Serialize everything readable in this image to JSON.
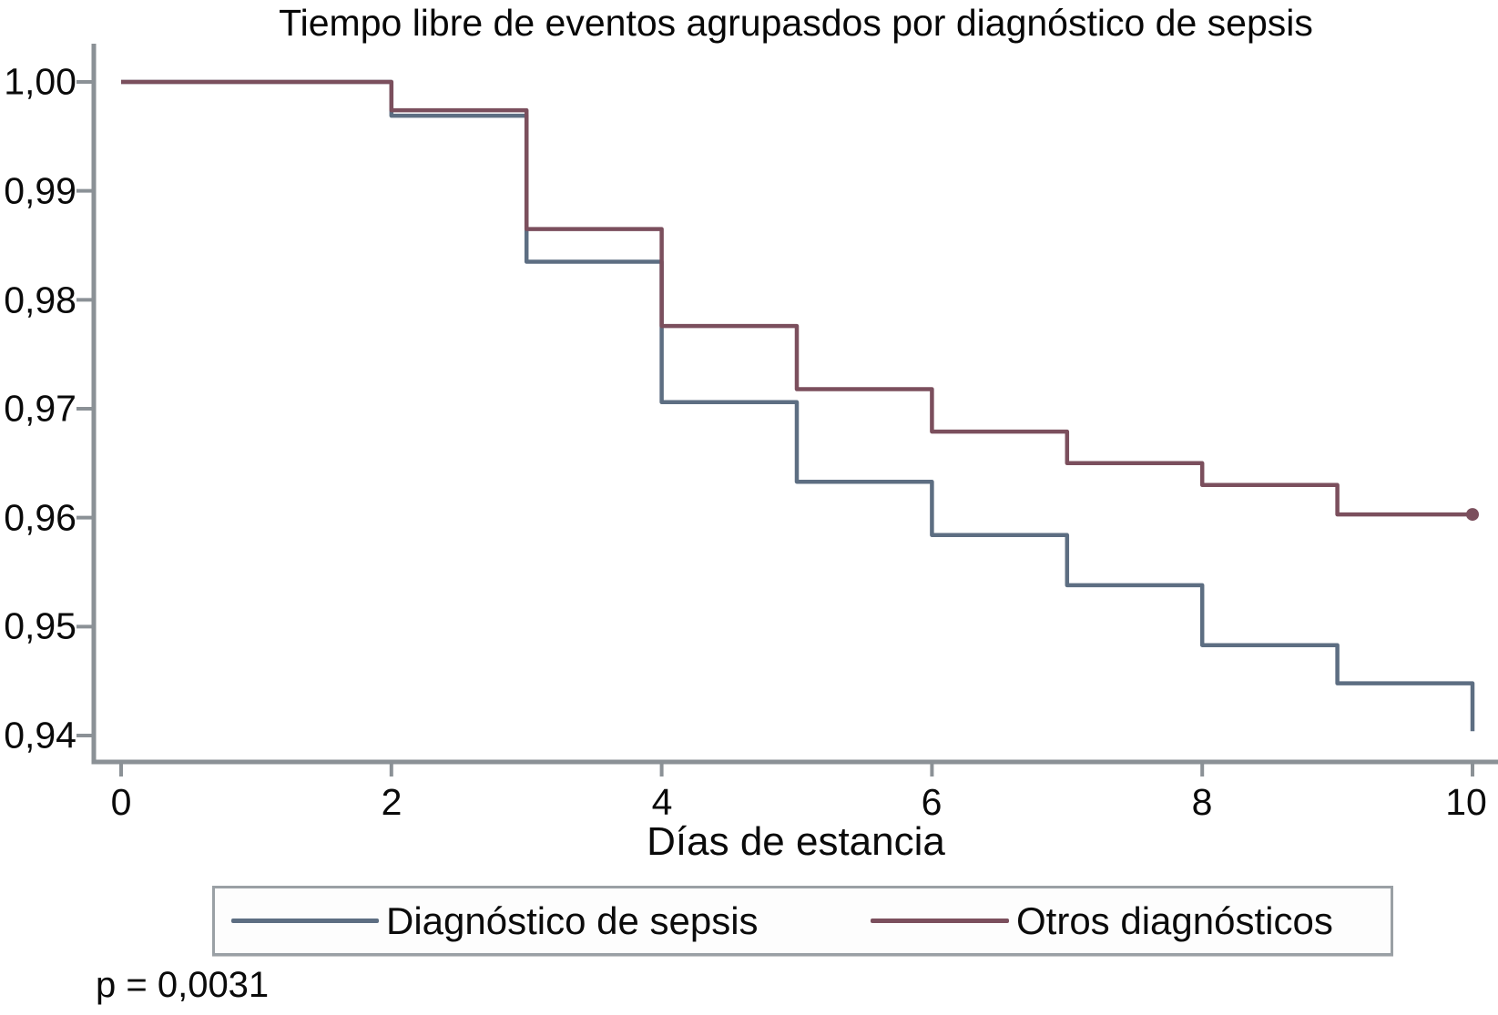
{
  "title": "Tiempo libre de eventos agrupasdos por diagnóstico de sepsis",
  "chart_data": {
    "type": "line",
    "subtype": "kaplan-meier-step",
    "title": "Tiempo libre de eventos agrupasdos por diagnóstico de sepsis",
    "xlabel": "Días de estancia",
    "ylabel": "",
    "xlim": [
      0,
      10
    ],
    "ylim": [
      0.9376,
      1.0035
    ],
    "grid": false,
    "legend_position": "bottom",
    "x_ticks": [
      0,
      2,
      4,
      6,
      8,
      10
    ],
    "y_ticks": [
      {
        "v": 1.0,
        "label": "1,00"
      },
      {
        "v": 0.99,
        "label": "0,99"
      },
      {
        "v": 0.98,
        "label": "0,98"
      },
      {
        "v": 0.97,
        "label": "0,97"
      },
      {
        "v": 0.96,
        "label": "0,96"
      },
      {
        "v": 0.95,
        "label": "0,95"
      },
      {
        "v": 0.94,
        "label": "0,94"
      }
    ],
    "series": [
      {
        "name": "Diagnóstico de sepsis",
        "color": "#5d6e82",
        "steps": [
          [
            0,
            1.0
          ],
          [
            2,
            0.9969
          ],
          [
            3,
            0.9835
          ],
          [
            4,
            0.9706
          ],
          [
            5,
            0.9633
          ],
          [
            6,
            0.9584
          ],
          [
            7,
            0.9538
          ],
          [
            8,
            0.9483
          ],
          [
            9,
            0.9448
          ]
        ],
        "end_time": 10,
        "end_value": 0.9404,
        "end_dot": false
      },
      {
        "name": "Otros diagnósticos",
        "color": "#7b4f5d",
        "steps": [
          [
            0,
            1.0
          ],
          [
            2,
            0.9974
          ],
          [
            3,
            0.9865
          ],
          [
            4,
            0.9776
          ],
          [
            5,
            0.9718
          ],
          [
            6,
            0.9679
          ],
          [
            7,
            0.965
          ],
          [
            8,
            0.963
          ],
          [
            9,
            0.9603
          ]
        ],
        "end_time": 10,
        "end_value": 0.9603,
        "end_dot": true
      }
    ],
    "annotation": "p = 0,0031"
  },
  "legend": {
    "items": [
      {
        "label": "Diagnóstico de sepsis",
        "color": "#5d6e82"
      },
      {
        "label": "Otros diagnósticos",
        "color": "#7b4f5d"
      }
    ]
  },
  "annotation": {
    "p_value": "p = 0,0031"
  },
  "colors": {
    "axis": "#8b9196",
    "text": "#0a0a0a",
    "legend_border": "#9aa0a5",
    "background": "#ffffff"
  }
}
